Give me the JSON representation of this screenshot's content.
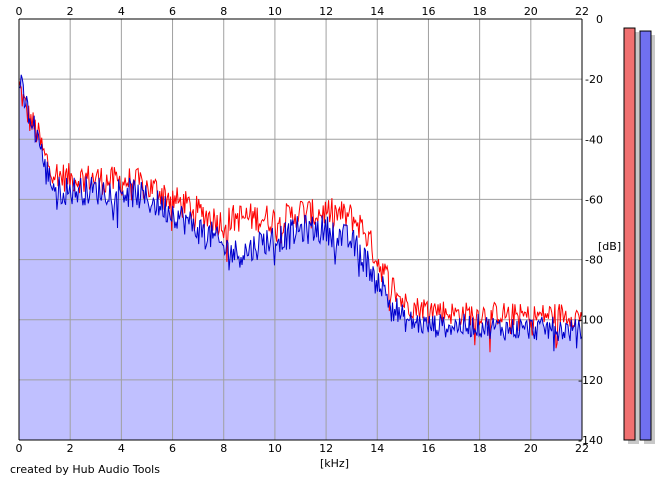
{
  "chart_data": {
    "type": "area",
    "xlabel": "[kHz]",
    "ylabel": "[dB]",
    "xlim": [
      0,
      22
    ],
    "ylim": [
      -140,
      0
    ],
    "x_ticks": [
      "0",
      "2",
      "4",
      "6",
      "8",
      "10",
      "12",
      "14",
      "16",
      "18",
      "20",
      "22"
    ],
    "y_ticks": [
      "0",
      "-20",
      "-40",
      "-60",
      "-80",
      "-100",
      "-120",
      "-140"
    ],
    "grid": true,
    "series": [
      {
        "color": "#ff0000",
        "x": [
          0,
          0.2,
          0.4,
          0.6,
          0.8,
          1,
          1.5,
          2,
          2.5,
          3,
          3.5,
          4,
          4.5,
          5,
          5.5,
          6,
          6.5,
          7,
          7.5,
          8,
          8.5,
          9,
          9.5,
          10,
          10.5,
          11,
          11.5,
          12,
          12.5,
          13,
          13.5,
          14,
          14.5,
          15,
          15.5,
          16,
          17,
          18,
          19,
          20,
          21,
          22
        ],
        "y": [
          -22,
          -28,
          -33,
          -36,
          -40,
          -46,
          -52,
          -53,
          -53,
          -53,
          -54,
          -54,
          -54,
          -56,
          -57,
          -60,
          -62,
          -64,
          -66,
          -68,
          -66,
          -66,
          -66,
          -67,
          -66,
          -64,
          -65,
          -64,
          -65,
          -66,
          -70,
          -80,
          -88,
          -94,
          -96,
          -96,
          -98,
          -98,
          -98,
          -99,
          -98,
          -99
        ]
      },
      {
        "color": "#0000cc",
        "x": [
          0,
          0.2,
          0.4,
          0.6,
          0.8,
          1,
          1.5,
          2,
          2.5,
          3,
          3.5,
          4,
          4.5,
          5,
          5.5,
          6,
          6.5,
          7,
          7.5,
          8,
          8.5,
          9,
          9.5,
          10,
          10.5,
          11,
          11.5,
          12,
          12.5,
          13,
          13.5,
          14,
          14.5,
          15,
          15.5,
          16,
          17,
          18,
          19,
          20,
          21,
          22
        ],
        "y": [
          -20,
          -27,
          -32,
          -36,
          -40,
          -50,
          -57,
          -57,
          -57,
          -57,
          -57,
          -57,
          -58,
          -60,
          -62,
          -64,
          -67,
          -70,
          -72,
          -76,
          -78,
          -77,
          -74,
          -73,
          -72,
          -70,
          -70,
          -70,
          -72,
          -74,
          -80,
          -86,
          -94,
          -100,
          -101,
          -102,
          -102,
          -102,
          -103,
          -103,
          -103,
          -104
        ]
      }
    ],
    "level_bars": [
      {
        "color": "#f07070",
        "value": -3
      },
      {
        "color": "#7070f0",
        "value": -4
      }
    ],
    "fill_color": "#c0c0ff",
    "grid_color": "#a0a0a0"
  },
  "credit": "created by Hub Audio Tools"
}
